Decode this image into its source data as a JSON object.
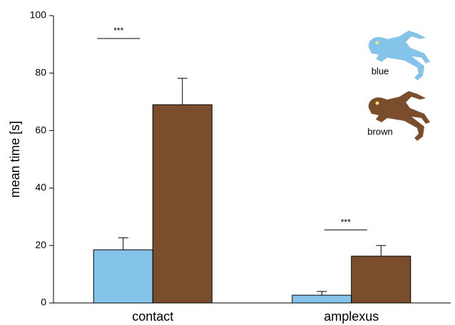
{
  "chart_data": {
    "type": "bar",
    "y_label": "mean time [s]",
    "categories": [
      "contact",
      "amplexus"
    ],
    "series": [
      {
        "name": "blue",
        "color": "#85c4ea",
        "values": [
          18.5,
          2.7
        ],
        "errors": [
          4.2,
          1.3
        ]
      },
      {
        "name": "brown",
        "color": "#7a4e2d",
        "values": [
          69,
          16.3
        ],
        "errors": [
          9.2,
          3.7
        ]
      }
    ],
    "annotations": [
      "***",
      "***"
    ],
    "ylim": [
      0,
      100
    ],
    "yticks": [
      0,
      20,
      40,
      60,
      80,
      100
    ],
    "legend": "top-right"
  }
}
